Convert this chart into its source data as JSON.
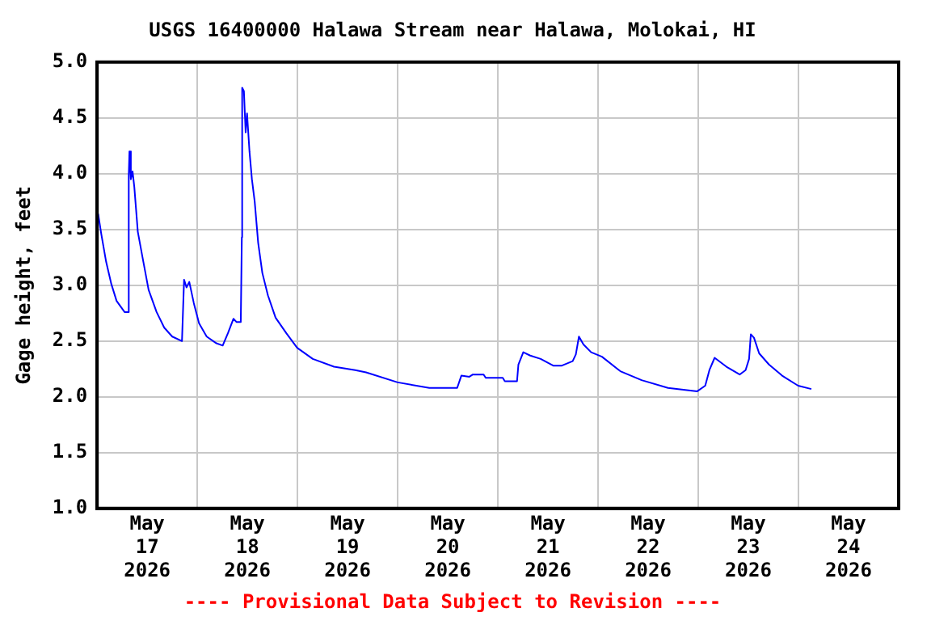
{
  "chart_data": {
    "type": "line",
    "title": "USGS 16400000 Halawa Stream near Halawa, Molokai, HI",
    "ylabel": "Gage height, feet",
    "annotations": [
      "---- Provisional Data Subject to Revision ----"
    ],
    "x": [
      "2026-05-17T00:15",
      "2026-05-17T01:00",
      "2026-05-17T02:10",
      "2026-05-17T03:25",
      "2026-05-17T04:40",
      "2026-05-17T06:35",
      "2026-05-17T07:30",
      "2026-05-17T07:35",
      "2026-05-17T07:45",
      "2026-05-17T08:05",
      "2026-05-17T08:30",
      "2026-05-17T08:55",
      "2026-05-17T09:45",
      "2026-05-17T11:05",
      "2026-05-17T12:20",
      "2026-05-17T14:15",
      "2026-05-17T16:05",
      "2026-05-17T18:00",
      "2026-05-17T20:20",
      "2026-05-17T20:50",
      "2026-05-17T21:25",
      "2026-05-17T22:05",
      "2026-05-17T23:10",
      "2026-05-18T00:25",
      "2026-05-18T02:15",
      "2026-05-18T04:35",
      "2026-05-18T06:05",
      "2026-05-18T07:20",
      "2026-05-18T08:40",
      "2026-05-18T09:25",
      "2026-05-18T10:25",
      "2026-05-18T10:40",
      "2026-05-18T10:45",
      "2026-05-18T11:10",
      "2026-05-18T11:35",
      "2026-05-18T11:55",
      "2026-05-18T12:30",
      "2026-05-18T13:05",
      "2026-05-18T13:45",
      "2026-05-18T14:35",
      "2026-05-18T15:35",
      "2026-05-18T16:55",
      "2026-05-18T18:45",
      "2026-05-18T21:20",
      "2026-05-18T23:55",
      "2026-05-19T03:40",
      "2026-05-19T08:45",
      "2026-05-19T13:50",
      "2026-05-19T16:25",
      "2026-05-20T00:00",
      "2026-05-20T07:35",
      "2026-05-20T14:15",
      "2026-05-20T15:15",
      "2026-05-20T17:10",
      "2026-05-20T18:00",
      "2026-05-20T20:35",
      "2026-05-20T21:05",
      "2026-05-21T01:10",
      "2026-05-21T01:40",
      "2026-05-21T04:35",
      "2026-05-21T04:55",
      "2026-05-21T06:05",
      "2026-05-21T07:45",
      "2026-05-21T10:15",
      "2026-05-21T13:15",
      "2026-05-21T15:20",
      "2026-05-21T17:55",
      "2026-05-21T18:40",
      "2026-05-21T19:25",
      "2026-05-21T20:30",
      "2026-05-21T22:20",
      "2026-05-22T00:55",
      "2026-05-22T05:20",
      "2026-05-22T10:25",
      "2026-05-22T16:45",
      "2026-05-22T23:45",
      "2026-05-23T01:40",
      "2026-05-23T02:40",
      "2026-05-23T03:55",
      "2026-05-23T06:45",
      "2026-05-23T09:55",
      "2026-05-23T11:20",
      "2026-05-23T12:10",
      "2026-05-23T12:35",
      "2026-05-23T13:20",
      "2026-05-23T14:35",
      "2026-05-23T16:55",
      "2026-05-23T20:05",
      "2026-05-23T23:55",
      "2026-05-24T03:05"
    ],
    "series": [
      {
        "color": "#0000ff",
        "values": [
          3.64,
          3.46,
          3.21,
          3.01,
          2.86,
          2.76,
          2.76,
          3.99,
          4.2,
          3.95,
          4.02,
          3.88,
          3.48,
          3.21,
          2.96,
          2.76,
          2.62,
          2.54,
          2.5,
          3.05,
          2.98,
          3.03,
          2.84,
          2.66,
          2.54,
          2.48,
          2.46,
          2.57,
          2.7,
          2.67,
          2.67,
          3.43,
          4.77,
          4.74,
          4.37,
          4.54,
          4.2,
          3.95,
          3.75,
          3.38,
          3.11,
          2.91,
          2.71,
          2.57,
          2.44,
          2.34,
          2.27,
          2.24,
          2.22,
          2.13,
          2.08,
          2.08,
          2.19,
          2.18,
          2.2,
          2.2,
          2.17,
          2.17,
          2.14,
          2.14,
          2.29,
          2.4,
          2.37,
          2.34,
          2.28,
          2.28,
          2.32,
          2.38,
          2.54,
          2.47,
          2.4,
          2.36,
          2.23,
          2.15,
          2.08,
          2.05,
          2.1,
          2.24,
          2.35,
          2.27,
          2.2,
          2.24,
          2.34,
          2.56,
          2.53,
          2.39,
          2.29,
          2.19,
          2.1,
          2.07
        ]
      }
    ],
    "xlim": [
      "2026-05-17T00:00",
      "2026-05-25T00:00"
    ],
    "xticks": [
      {
        "value": "2026-05-17T12:00",
        "label": "May 17 2026"
      },
      {
        "value": "2026-05-18T00:00",
        "label": null
      },
      {
        "value": "2026-05-18T12:00",
        "label": "May 18 2026"
      },
      {
        "value": "2026-05-19T00:00",
        "label": null
      },
      {
        "value": "2026-05-19T12:00",
        "label": "May 19 2026"
      },
      {
        "value": "2026-05-20T00:00",
        "label": null
      },
      {
        "value": "2026-05-20T12:00",
        "label": "May 20 2026"
      },
      {
        "value": "2026-05-21T00:00",
        "label": null
      },
      {
        "value": "2026-05-21T12:00",
        "label": "May 21 2026"
      },
      {
        "value": "2026-05-22T00:00",
        "label": null
      },
      {
        "value": "2026-05-22T12:00",
        "label": "May 22 2026"
      },
      {
        "value": "2026-05-23T00:00",
        "label": null
      },
      {
        "value": "2026-05-23T12:00",
        "label": "May 23 2026"
      },
      {
        "value": "2026-05-24T00:00",
        "label": null
      },
      {
        "value": "2026-05-24T12:00",
        "label": "May 24 2026"
      }
    ],
    "ylim": [
      1.0,
      5.0
    ],
    "yticks": [
      {
        "value": 1.0,
        "label": "1.0"
      },
      {
        "value": 1.5,
        "label": "1.5"
      },
      {
        "value": 2.0,
        "label": "2.0"
      },
      {
        "value": 2.5,
        "label": "2.5"
      },
      {
        "value": 3.0,
        "label": "3.0"
      },
      {
        "value": 3.5,
        "label": "3.5"
      },
      {
        "value": 4.0,
        "label": "4.0"
      },
      {
        "value": 4.5,
        "label": "4.5"
      },
      {
        "value": 5.0,
        "label": "5.0"
      }
    ],
    "grid": true,
    "legend": false,
    "line_style": "solid",
    "marker": "none"
  }
}
